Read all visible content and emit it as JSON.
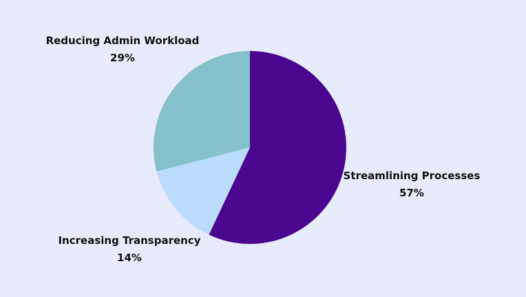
{
  "chart_data": {
    "type": "pie",
    "slices": [
      {
        "label": "Streamlining Processes",
        "value": 57,
        "display": "57%",
        "color": "#4b068f"
      },
      {
        "label": "Increasing Transparency",
        "value": 14,
        "display": "14%",
        "color": "#bcdcfe"
      },
      {
        "label": "Reducing Admin Workload",
        "value": 29,
        "display": "29%",
        "color": "#85c1cc"
      }
    ],
    "start_angle": "12 o'clock",
    "direction": "clockwise",
    "legend": "none"
  }
}
